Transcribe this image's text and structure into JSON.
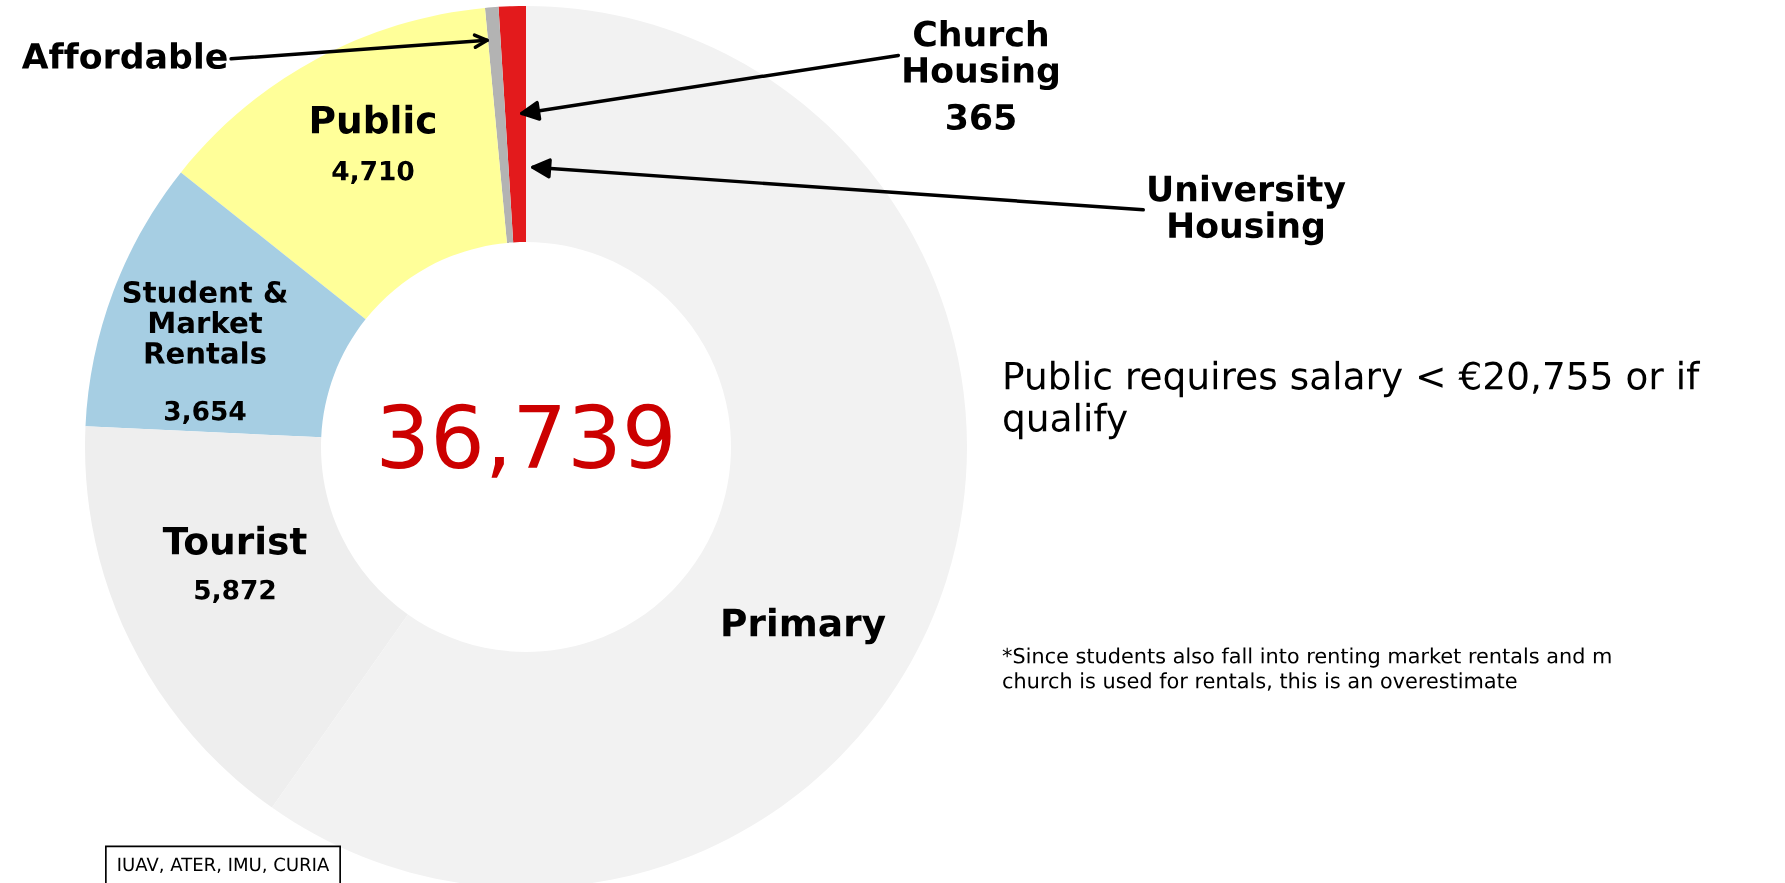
{
  "chart_data": {
    "type": "donut",
    "categories": [
      "Church\nHousing",
      "Affordable",
      "Public",
      "Student &\nMarket\nRentals",
      "Tourist",
      "Primary"
    ],
    "values": [
      365,
      180,
      4710,
      3654,
      5872,
      21958
    ],
    "value_labels": [
      "365",
      null,
      "4,710",
      "3,654",
      "5,872",
      null
    ],
    "colors": [
      "#e31a1c",
      "#b3b3b3",
      "#ffff99",
      "#a6cee3",
      "#eeeeee",
      "#f2f2f2"
    ],
    "annotations": [
      "36,739",
      "University\nHousing",
      "Public requires salary < €20,755 or if\nqualify",
      "*Since students also fall into renting market rentals and m\nchurch is used for rentals, this is an overestimate",
      "IUAV, ATER, IMU, CURIA"
    ]
  }
}
